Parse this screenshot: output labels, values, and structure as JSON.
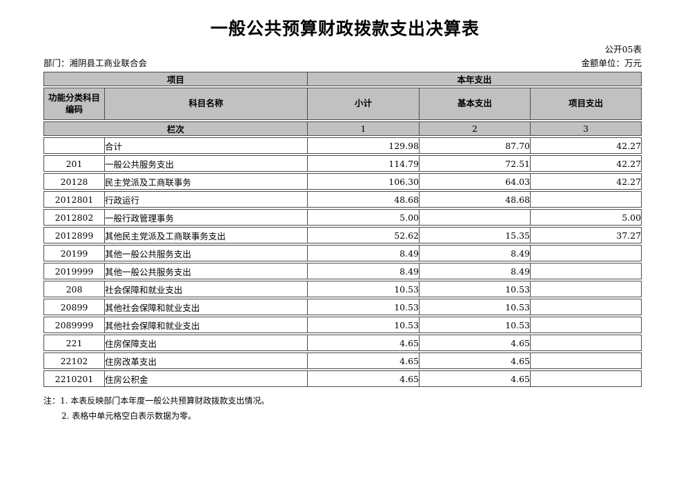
{
  "page": {
    "title": "一般公共预算财政拨款支出决算表",
    "table_code": "公开05表",
    "department": "部门：湘阴县工商业联合会",
    "unit": "金额单位：万元"
  },
  "table": {
    "header": {
      "group_left": "项目",
      "group_right": "本年支出",
      "col_code": "功能分类科目编码",
      "col_name": "科目名称",
      "col_subtotal": "小计",
      "col_basic": "基本支出",
      "col_project": "项目支出",
      "row_label": "栏次",
      "col_numbers": [
        "1",
        "2",
        "3"
      ]
    },
    "rows": [
      [
        "",
        "合计",
        "129.98",
        "87.70",
        "42.27"
      ],
      [
        "201",
        "一般公共服务支出",
        "114.79",
        "72.51",
        "42.27"
      ],
      [
        "20128",
        "民主党派及工商联事务",
        "106.30",
        "64.03",
        "42.27"
      ],
      [
        "2012801",
        "行政运行",
        "48.68",
        "48.68",
        ""
      ],
      [
        "2012802",
        "一般行政管理事务",
        "5.00",
        "",
        "5.00"
      ],
      [
        "2012899",
        "其他民主党派及工商联事务支出",
        "52.62",
        "15.35",
        "37.27"
      ],
      [
        "20199",
        "其他一般公共服务支出",
        "8.49",
        "8.49",
        ""
      ],
      [
        "2019999",
        "其他一般公共服务支出",
        "8.49",
        "8.49",
        ""
      ],
      [
        "208",
        "社会保障和就业支出",
        "10.53",
        "10.53",
        ""
      ],
      [
        "20899",
        "其他社会保障和就业支出",
        "10.53",
        "10.53",
        ""
      ],
      [
        "2089999",
        "其他社会保障和就业支出",
        "10.53",
        "10.53",
        ""
      ],
      [
        "221",
        "住房保障支出",
        "4.65",
        "4.65",
        ""
      ],
      [
        "22102",
        "住房改革支出",
        "4.65",
        "4.65",
        ""
      ],
      [
        "2210201",
        "住房公积金",
        "4.65",
        "4.65",
        ""
      ]
    ]
  },
  "notes": {
    "prefix": "注：",
    "items": [
      "1. 本表反映部门本年度一般公共预算财政拨款支出情况。",
      "2. 表格中单元格空白表示数据为零。"
    ]
  },
  "colors": {
    "header_bg": "#c1c1c1",
    "border": "#4a4a4a",
    "text": "#000000"
  }
}
